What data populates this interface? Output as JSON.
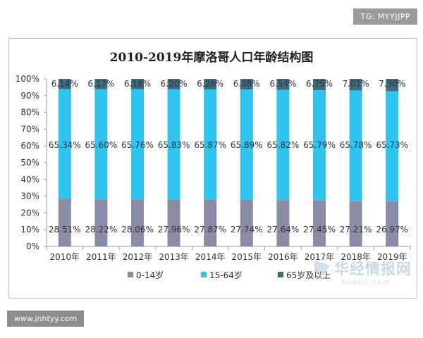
{
  "watermarks": {
    "top_badge": "TG: MYYJJPP",
    "bottom_badge": "www.jnhtyy.com",
    "site_main": "华经情报网",
    "site_sub": "huaon.com"
  },
  "colors": {
    "age_0_14": "#8a8ca6",
    "age_15_64": "#2ec4f0",
    "age_65_plus": "#406a7e"
  },
  "chart_data": {
    "type": "bar",
    "stacked": true,
    "percent": true,
    "title": "2010-2019年摩洛哥人口年龄结构图",
    "categories": [
      "2010年",
      "2011年",
      "2012年",
      "2013年",
      "2014年",
      "2015年",
      "2016年",
      "2017年",
      "2018年",
      "2019年"
    ],
    "series": [
      {
        "name": "0-14岁",
        "values": [
          28.51,
          28.22,
          28.06,
          27.96,
          27.87,
          27.74,
          27.64,
          27.45,
          27.21,
          26.97
        ],
        "labels": [
          "28.51%",
          "28.22%",
          "28.06%",
          "27.96%",
          "27.87%",
          "27.74%",
          "27.64%",
          "27.45%",
          "27.21%",
          "26.97%"
        ]
      },
      {
        "name": "15-64岁",
        "values": [
          65.34,
          65.6,
          65.76,
          65.83,
          65.87,
          65.89,
          65.82,
          65.79,
          65.78,
          65.73
        ],
        "labels": [
          "65.34%",
          "65.60%",
          "65.76%",
          "65.83%",
          "65.87%",
          "65.89%",
          "65.82%",
          "65.79%",
          "65.78%",
          "65.73%"
        ]
      },
      {
        "name": "65岁及以上",
        "values": [
          6.14,
          6.17,
          6.18,
          6.2,
          6.26,
          6.38,
          6.54,
          6.75,
          7.01,
          7.3
        ],
        "labels": [
          "6.14%",
          "6.17%",
          "6.18%",
          "6.20%",
          "6.26%",
          "6.38%",
          "6.54%",
          "6.75%",
          "7.01%",
          "7.30%"
        ]
      }
    ],
    "yticks": [
      "0%",
      "10%",
      "20%",
      "30%",
      "40%",
      "50%",
      "60%",
      "70%",
      "80%",
      "90%",
      "100%"
    ],
    "ylim": [
      0,
      100
    ],
    "grid": false,
    "legend_position": "bottom"
  }
}
